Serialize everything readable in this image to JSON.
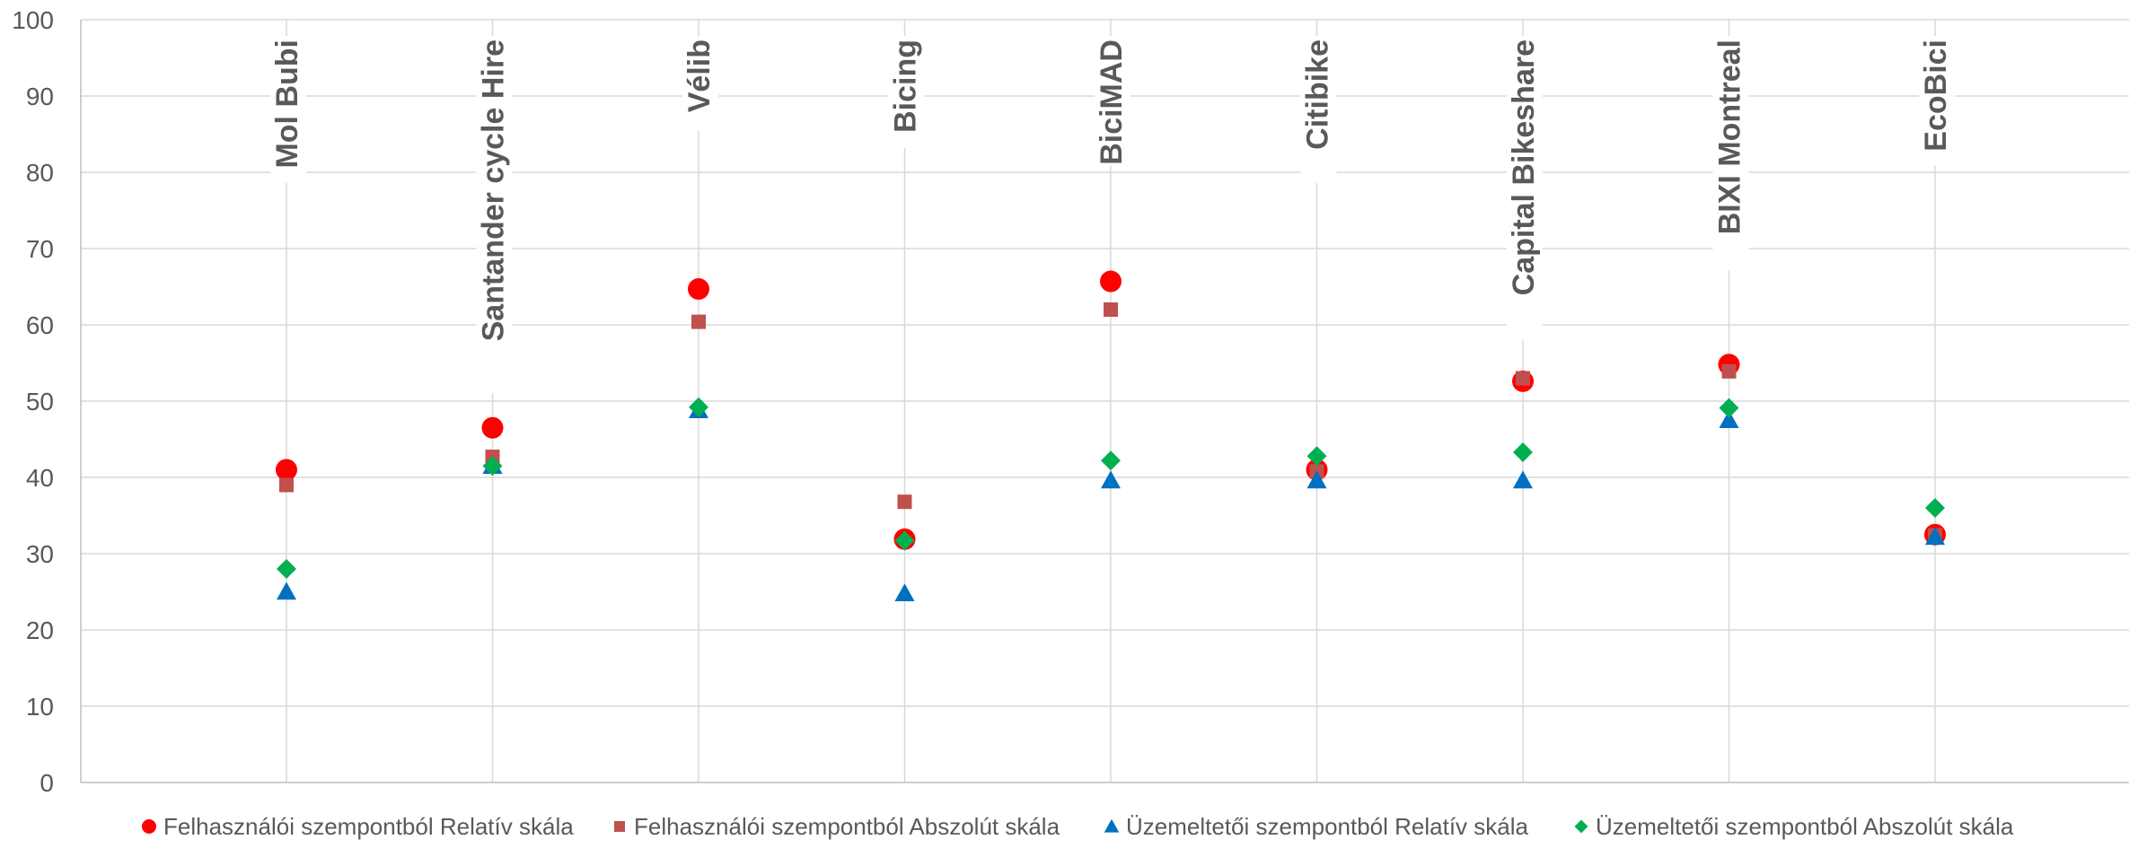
{
  "chart_data": {
    "type": "scatter",
    "categories": [
      "Mol Bubi",
      "Santander cycle Hire",
      "Vélib",
      "Bicing",
      "BiciMAD",
      "Citibike",
      "Capital Bikeshare",
      "BIXI Montreal",
      "EcoBici"
    ],
    "ylim": [
      0,
      100
    ],
    "yticks": [
      0,
      10,
      20,
      30,
      40,
      50,
      60,
      70,
      80,
      90,
      100
    ],
    "grid": true,
    "legend_position": "bottom",
    "series": [
      {
        "name": "Felhasználói szempontból Relatív skála",
        "marker": "circle",
        "color": "#ff0000",
        "values": [
          41,
          46.5,
          64.7,
          31.9,
          65.7,
          41,
          52.6,
          54.8,
          32.5
        ]
      },
      {
        "name": "Felhasználói szempontból Abszolút skála",
        "marker": "square",
        "color": "#c0504d",
        "values": [
          39,
          42.7,
          60.4,
          36.8,
          62,
          40.8,
          53,
          53.9,
          32.4
        ]
      },
      {
        "name": "Üzemeltetői szempontból Relatív skála",
        "marker": "triangle",
        "color": "#0070c0",
        "values": [
          25,
          41.5,
          48.8,
          24.8,
          39.6,
          39.6,
          39.6,
          47.5,
          32.2
        ]
      },
      {
        "name": "Üzemeltetői szempontból Abszolút skála",
        "marker": "diamond",
        "color": "#00b050",
        "values": [
          28,
          41.5,
          49.2,
          31.7,
          42.2,
          42.8,
          43.3,
          49.1,
          36
        ]
      }
    ]
  }
}
